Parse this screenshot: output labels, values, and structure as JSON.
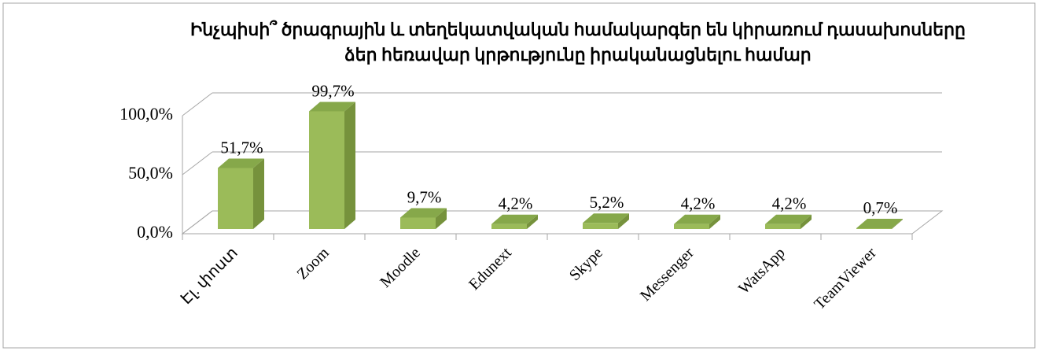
{
  "chart_data": {
    "type": "bar3d",
    "title": [
      "Ինչպիսի՞ ծրագրային և տեղեկատվական համակարգեր են կիրառում դասախոսները",
      "ձեր հեռավար կրթությունը իրականացնելու համար"
    ],
    "categories": [
      "Էլ. փոստ",
      "Zoom",
      "Moodle",
      "Edunext",
      "Skype",
      "Messenger",
      "WatsApp",
      "TeamViewer"
    ],
    "values": [
      51.7,
      99.7,
      9.7,
      4.2,
      5.2,
      4.2,
      4.2,
      0.7
    ],
    "value_labels": [
      "51,7%",
      "99,7%",
      "9,7%",
      "4,2%",
      "5,2%",
      "4,2%",
      "4,2%",
      "0,7%"
    ],
    "color": "#9bbb59",
    "ylim": [
      0,
      100
    ],
    "yticks": [
      {
        "value": 0,
        "label": "0,0%"
      },
      {
        "value": 50,
        "label": "50,0%"
      },
      {
        "value": 100,
        "label": "100,0%"
      }
    ],
    "grid": true
  }
}
